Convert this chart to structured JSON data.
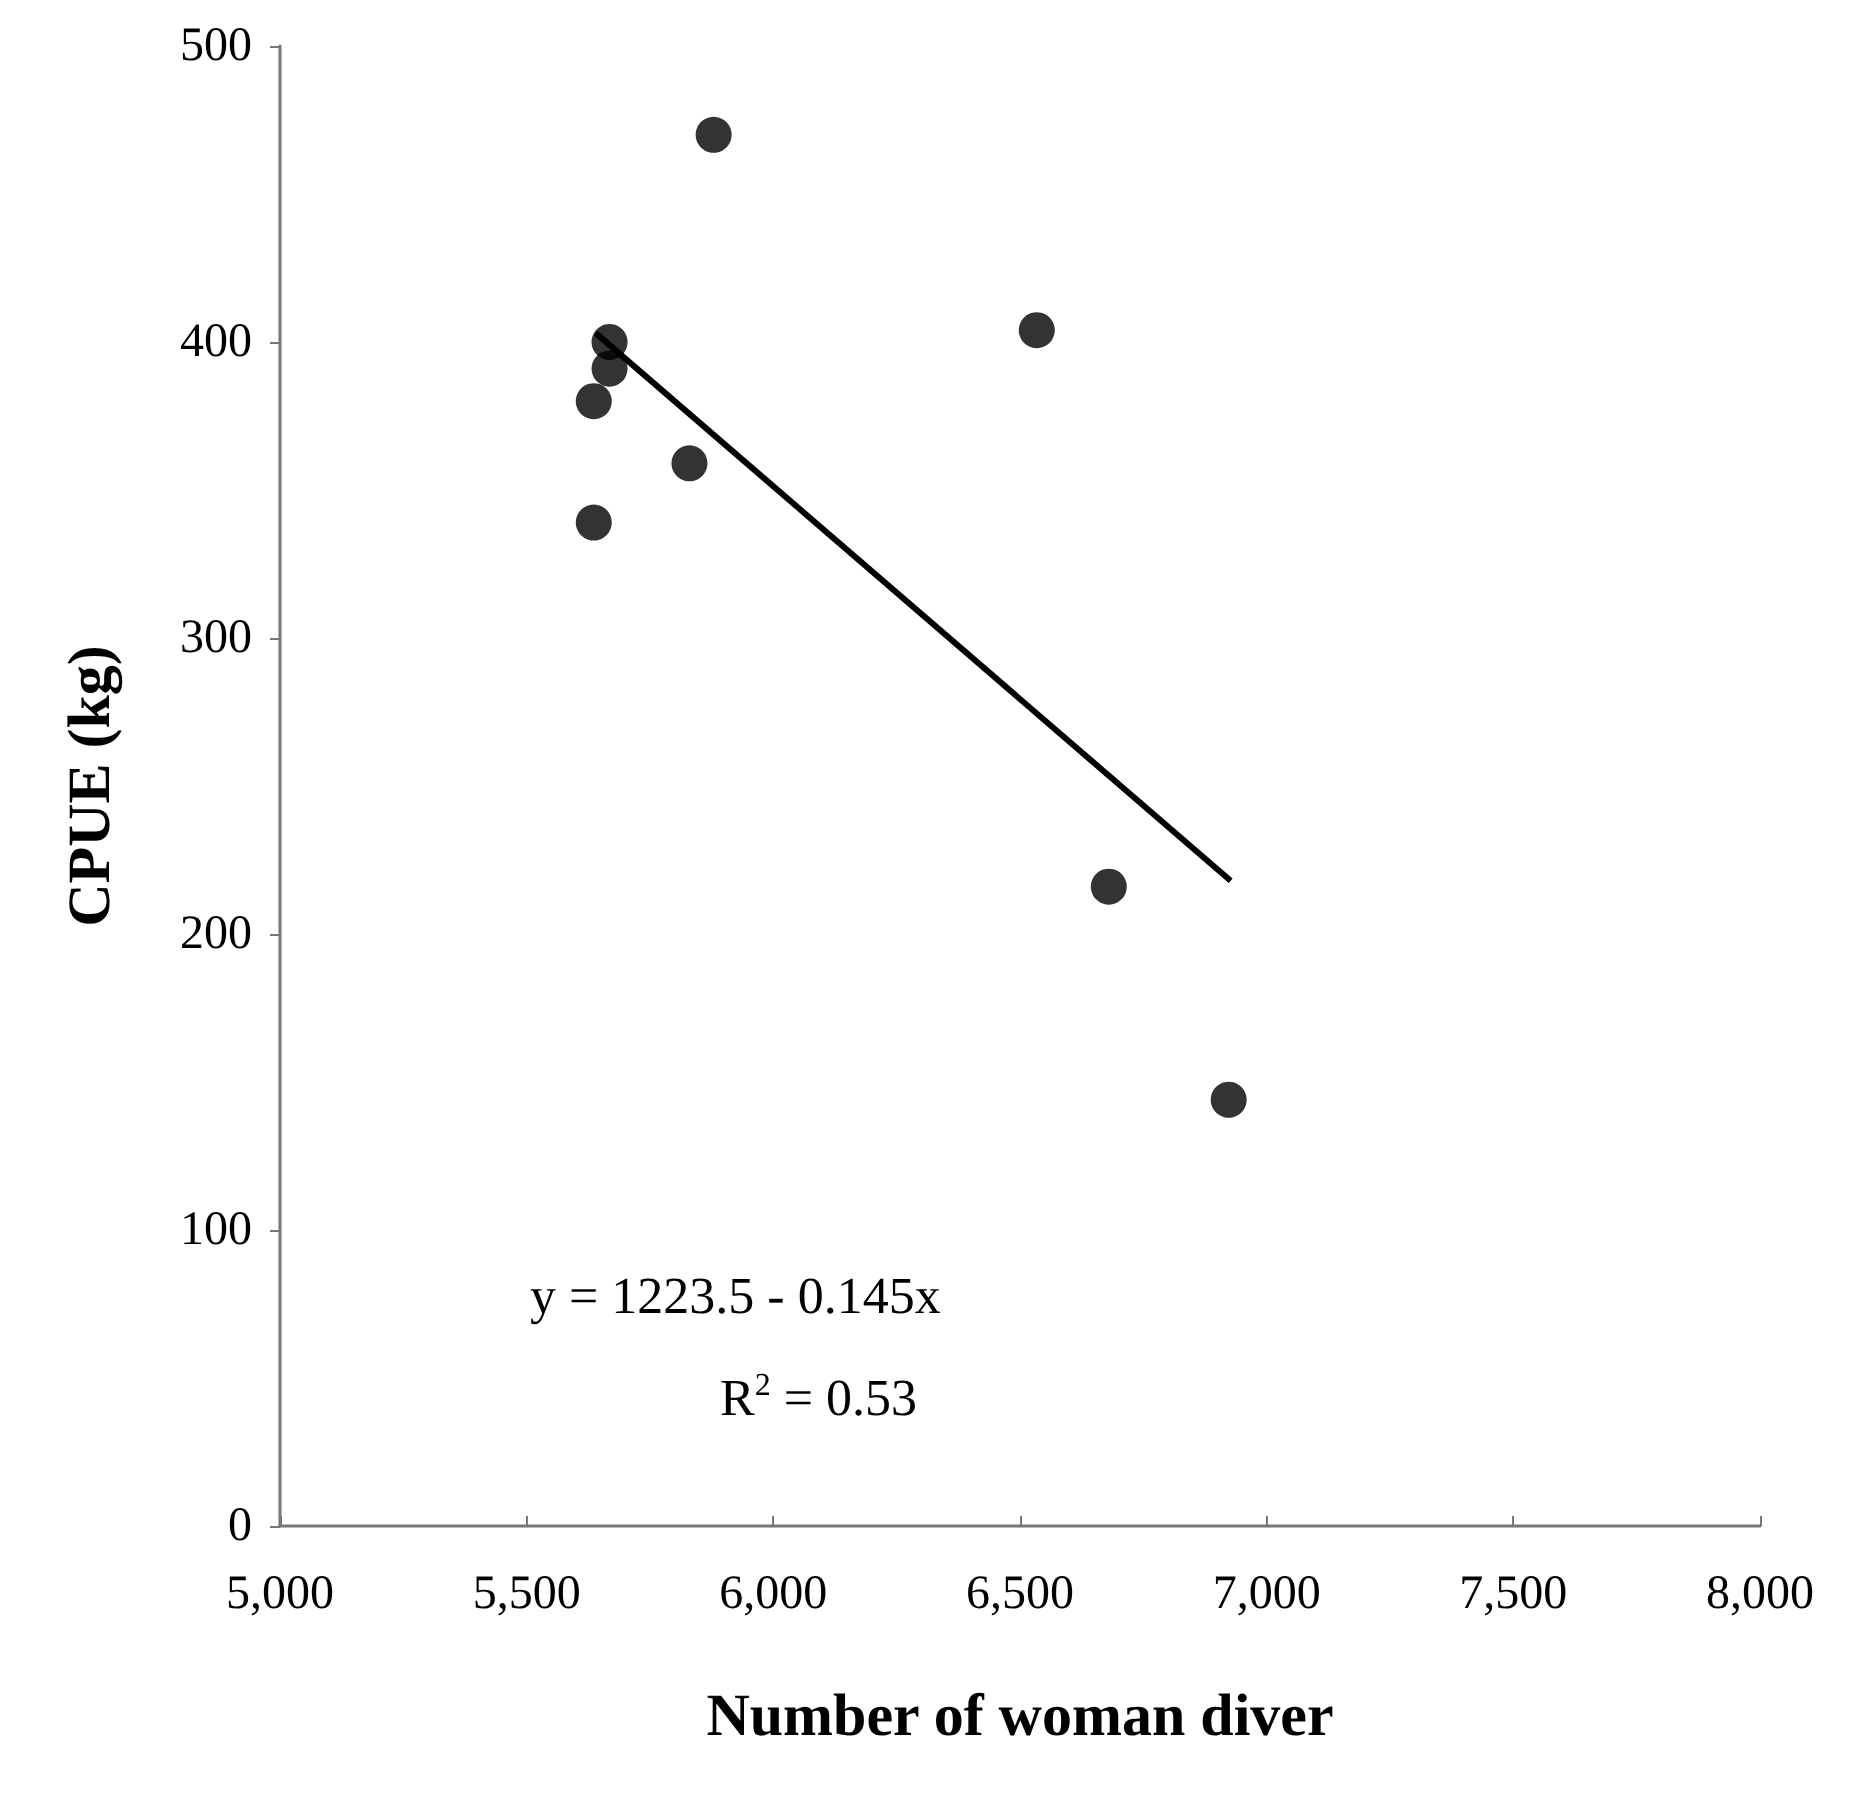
{
  "chart_data": {
    "type": "scatter",
    "xlabel": "Number of woman diver",
    "ylabel": "CPUE (kg)",
    "x": [
      5879,
      5668,
      5668,
      5636,
      5830,
      5636,
      6534,
      6680,
      6923
    ],
    "series": [
      {
        "color": "#000000",
        "marker": "circle",
        "values": [
          470,
          400,
          391,
          380,
          359,
          339,
          404,
          216,
          144
        ]
      },
      {
        "type": "line",
        "color": "#000000",
        "marker": "none",
        "x": [
          5640,
          6927
        ],
        "values": [
          403,
          218
        ]
      }
    ],
    "annotations": [
      "y = 1223.5 - 0.145x",
      "R$^{2}$ = 0.53"
    ],
    "xlim": [
      5000,
      8000
    ],
    "xticks": [
      {
        "value": 5000,
        "label": "5,000"
      },
      {
        "value": 5500,
        "label": "5,500"
      },
      {
        "value": 6000,
        "label": "6,000"
      },
      {
        "value": 6500,
        "label": "6,500"
      },
      {
        "value": 7000,
        "label": "7,000"
      },
      {
        "value": 7500,
        "label": "7,500"
      },
      {
        "value": 8000,
        "label": "8,000"
      }
    ],
    "ylim": [
      0,
      500
    ],
    "yticks": [
      0,
      100,
      200,
      300,
      400,
      500
    ],
    "grid": false
  }
}
